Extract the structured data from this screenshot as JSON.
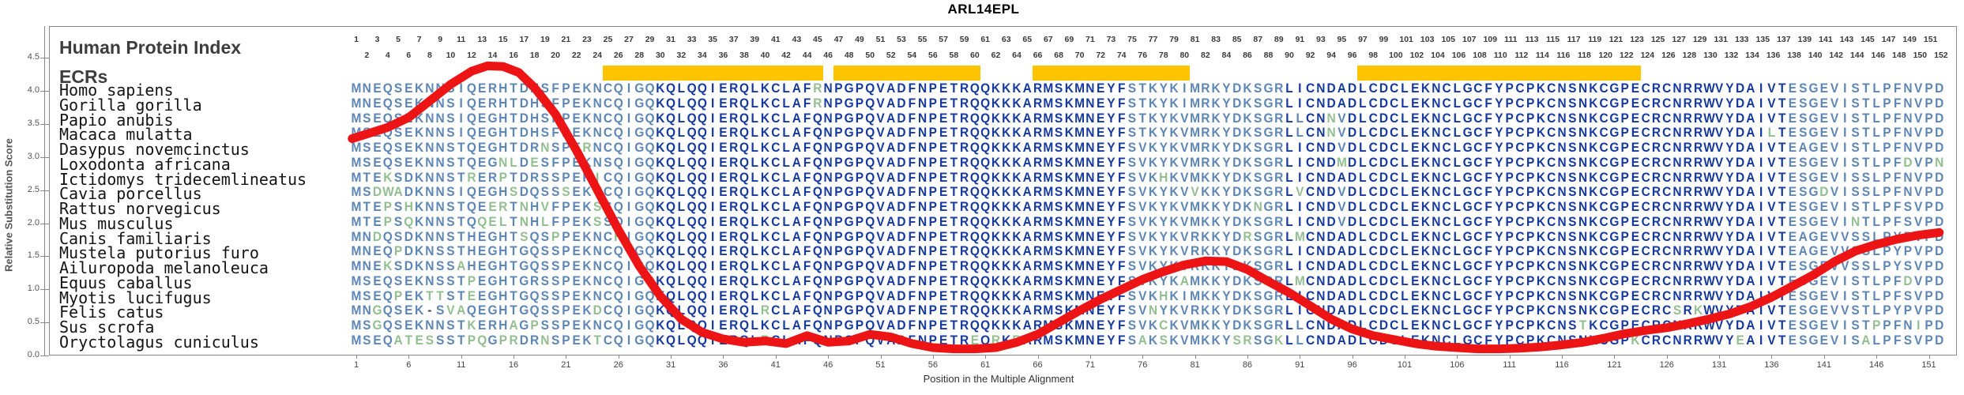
{
  "title": "ARL14EPL",
  "panel": {
    "header": "Human Protein Index",
    "subheader": "ECRs"
  },
  "y_axis": {
    "label": "Relative Substitution Score",
    "ticks": [
      "0.0",
      "0.5",
      "1.0",
      "1.5",
      "2.0",
      "2.5",
      "3.0",
      "3.5",
      "4.0",
      "4.5"
    ]
  },
  "x_axis": {
    "label": "Position in the Multiple Alignment",
    "tick_start": 1,
    "tick_step": 5,
    "tick_end": 151
  },
  "alignment": {
    "num_positions": 152,
    "species": [
      {
        "name": "Homo sapiens",
        "sequence": "MNEQSEKNNSIQERHTDHSFPEKNCQIGQKQLQQIERQLKCLAFRNPGPQVADFNPETRQQKKKARMSKMNEYFSTKYKIMRKYDKSGRLICNDADLCDCLEKNCLGCFYPCPKCNSNKCGPECRCNRRWVYDAIVTESGEVISTLPFNVPD"
      },
      {
        "name": "Gorilla gorilla",
        "sequence": "MNEQSEKNNSIQERHTDHSFPEKNCQIGQKQLQQIERQLKCLAFRNPGPQVADFNPETRQQKKKARMSKMNEYFSTKYKIMRKYDKSGRLICNDADLCDCLEKNCLGCFYPCPKCNSNKCGPECRCNRRWVYDAIVTESGEVISTLPFNVPD"
      },
      {
        "name": "Papio anubis",
        "sequence": "MSEQSEKNNSIQEGHTDHSFPEKNCQIGQKQLQQIERQLKCLAFQNPGPQVADFNPETRQQKKKARMSKMNEYFSTKYKVMRKYDKSGRLLCNNVDLCDCLEKNCLGCFYPCPKCNSNKCGPECRCNRRWVYDAIVTESGEVISTLPFNVPD"
      },
      {
        "name": "Macaca mulatta",
        "sequence": "MSEQSEKNNSIQEGHTDHSFPEKNCQIGQKQLQQIERQLKCLAFQNPGPQVADFNPETRQQKKKARMSKMNEYFSTKYKVMRKYDKSGRLLCNNVDLCDCLEKNCLGCFYPCPKCNSNKCGPECRCNRRWVYDAILTESGEVISTLPFNVPD"
      },
      {
        "name": "Dasypus novemcinctus",
        "sequence": "MSEQSEKNNSTQEGHTDRNSPERNCQIGQKQLQQIERQLKCLAFQNPGPQVADFNPETRQQKKKARMSKMNEYFSVKYKVMRKYDKSGRLICNDVDLCDCLEKNCLGCFYPCPKCNSNKCGPECRCNRRWVYDAIVTEAGEVISTLPFNVPD"
      },
      {
        "name": "Loxodonta africana",
        "sequence": "MSEQSEKNNSTQEGNLDESFPEKNSQIGQKQLQQIERQLKCLAFQNPGPQVADFNPETRQQKKKARMSKMNEYFSVKYKVMRKYDKSGRLICNDMDLCDCLEKNCLGCFYPCPKCNSNKCGPECRCNRRWVYDAIVTESGEVISTLPFDVPN"
      },
      {
        "name": "Ictidomys tridecemlineatus",
        "sequence": "MTEKSDKNNSTRERPTDRSSPEKICQIGQKQLQQIERQLKCLAFQNPGPQVADFNPETRQQKKKARMSKMNEYFSVKHKVMKKYDKSGRLICNDADLCDCLEKNCLGCFYPCPKCNSNKCGPECRCNRRWVYDAIVTESGEVISSLPFNVPD"
      },
      {
        "name": "Cavia porcellus",
        "sequence": "MSDWADKNNSIQEGHSDQSSSEKTCQIGQKQLQQIERQLKCLAFQNPGPQVADFNPETRQQKKKARMSKMNEYFSVKYKVVKKYDKSGRLVCNDVDLCDCLEKNCLGCFYPCPKCNSNKCGPECRCNRRWVYDAIVTESGDVISSLPFNVPD"
      },
      {
        "name": "Rattus norvegicus",
        "sequence": "MTEPSHKNNSTQEERTNHVFPEKSSQIGQKQLQQIERQLKCLAFQNPGPQVADFNPETRQQKKKARMSKMNEYFSVKYKVMKKYDKNGRLICNDVDLCDCLEKNCLGCFYPCPKCNSNKCGPECRCNRRWVYDAIVTESGEVISTLPFSVPD"
      },
      {
        "name": "Mus musculus",
        "sequence": "MTEPSQKNNSTQQELTNHLFPEKSSQIGQKQLQQIERQLKCLAFQNPGPQVADFNPETRQQKKKARMSKMNEYFSVKYKVMKKYDKSGRLICNDVDLCDCLEKNCLGCFYPCPKCNSNKCGPECRCNRRWVYDAIVTESGEVINTLPFSVPD"
      },
      {
        "name": "Canis familiaris",
        "sequence": "MNDQSDKNNSTHEGHTSQSPPEKNCHIGQKQLQQIERQLKCLAFQNPGPQVADFNPETRQQKKKARMSKMNEYFSVKYKVRKKYDRSGRLMCNDADLCDCLEKNCLGCFYPCPKCNSNKCGPECRCNRRWVYDAIVTEAGEVVSSLPYPVPD"
      },
      {
        "name": "Mustela putorius furo",
        "sequence": "MNEQPDKNSSTHEGHTGQSSPEKNCQIGQKQLQQIERQLKCLAFQNPGPQVADFNPETRQQKKKARMSKMNEYFSVKYKVRKKYDKSGRLICNDADLCDCLEKNCLGCFYPCPKCNSNKCGPECRCNRRWVYDAIVTEAGEVVSSLPYPVPD"
      },
      {
        "name": "Ailuropoda melanoleuca",
        "sequence": "MNEKSDKNSSAHEGHTGQSSPEKNCQIGQKQLQQIERQLKCLAFQNPGPQVADFNPETRQQKKKARMSKMNEYFSVKYKVRKKYDKSGRLICNDADLCDCLEKNCLGCFYPCPKCNSNKCGPECRCNRRWVYDAIVTESGEVVSSLPYSVPD"
      },
      {
        "name": "Equus caballus",
        "sequence": "MSEQSEKNSSTPEGHTGRSSPEKNCQIGQKQLQQIERQLKCLAFQNPGPQVADFNPETRQQKKKARMSKMNEYFSVKYKAMKKYDKSGRLMCNDADLCDCLEKNCLGCFYPCPKCNSNKCGPECRCNRRWVYDAIVTESGEVISTLPFDVPD"
      },
      {
        "name": "Myotis lucifugus",
        "sequence": "MSEQPEKTTSTEEGHTGQSSPEKNCQIGQKQLQQIERQLKCLAFQNPGPQVADFNPETRQQKKKARMSKMNEYFSVKHKIMKKYDKSGRLICNDADLCDCLEKNCLGCFYPCPKCNSNKCGPECRCNRRWVYDAIVTESGEVISTLPFSVPD"
      },
      {
        "name": "Felis catus",
        "sequence": "MNGQSEK-SVAQEGHTGQSSPEKDCQIGQKQLQQIERQLRCLAFQNPGPQVADFNPETRQQKKKARMSKMNEYFSVNYKVRKKYDKSGRLICNDADLCDCLEKNCLGCFYPCPKCNSNKCGPECRCSRKWVYDAIVTESGEVVSTLPYPVPD"
      },
      {
        "name": "Sus scrofa",
        "sequence": "MSGQSEKNNSTKERHAGPSSPEKNCQIGQKQLQQIERQLKCLAFQNPGPQVADFNPETRQQKKKARMSKMNEYFSVKCKVMKKYDKSGRLLCNDADLCDCLEKNCLGCFYPCPKCNSTKCGPECRCNRRWVYDAIVTESGEVISTPPFNIPD"
      },
      {
        "name": "Oryctolagus cuniculus",
        "sequence": "MSEQATESSSTPQGPRDRNSPEKTCQIGQKQLQQIERQLRCLAFQNPGPQVADFNPETREQRKRARMSKMNEYFSAKSKVMKKYSRSGKLLCNDADLCDCLEKNCLGCFYPCPKCNSNKCGPKCRCNRRWVYEAIVTESGEVISALPFSVPD"
      }
    ]
  },
  "ecr_bars": {
    "color": "#FFC400",
    "regions": [
      {
        "start": 25,
        "end": 45
      },
      {
        "start": 47,
        "end": 60
      },
      {
        "start": 66,
        "end": 80
      },
      {
        "start": 97,
        "end": 123
      }
    ]
  },
  "colors": {
    "curve_red": "#EC1414",
    "ecr_yellow": "#FFC400",
    "letter_conserved_navy": "#16399E",
    "letter_intermediate_steel": "#5E86B5",
    "letter_variable_green": "#92BE90",
    "gap_dash": "#444444",
    "border_gray": "#8A8A8A"
  },
  "chart_data": {
    "type": "line",
    "title": "ARL14EPL",
    "xlabel": "Position in the Multiple Alignment",
    "ylabel": "Relative Substitution Score",
    "xlim": [
      1,
      152
    ],
    "ylim": [
      0,
      4.75
    ],
    "grid": false,
    "legend": "none",
    "ecr_regions": [
      [
        25,
        45
      ],
      [
        47,
        60
      ],
      [
        66,
        80
      ],
      [
        97,
        123
      ]
    ],
    "series": [
      {
        "name": "Relative Substitution Score",
        "color": "#EC1414",
        "points": [
          [
            0.6,
            3.28
          ],
          [
            2,
            3.35
          ],
          [
            4,
            3.45
          ],
          [
            6,
            3.6
          ],
          [
            8,
            3.85
          ],
          [
            10,
            4.1
          ],
          [
            12,
            4.3
          ],
          [
            13.5,
            4.38
          ],
          [
            15,
            4.37
          ],
          [
            16.5,
            4.28
          ],
          [
            18,
            4.05
          ],
          [
            20,
            3.65
          ],
          [
            22,
            3.1
          ],
          [
            24,
            2.5
          ],
          [
            26,
            1.9
          ],
          [
            28,
            1.35
          ],
          [
            30,
            0.9
          ],
          [
            32,
            0.55
          ],
          [
            34,
            0.35
          ],
          [
            36,
            0.25
          ],
          [
            38,
            0.2
          ],
          [
            40,
            0.22
          ],
          [
            42,
            0.18
          ],
          [
            44,
            0.3
          ],
          [
            46,
            0.2
          ],
          [
            48,
            0.22
          ],
          [
            50,
            0.32
          ],
          [
            52,
            0.28
          ],
          [
            54,
            0.18
          ],
          [
            56,
            0.12
          ],
          [
            58,
            0.1
          ],
          [
            60,
            0.1
          ],
          [
            62,
            0.12
          ],
          [
            64,
            0.2
          ],
          [
            66,
            0.32
          ],
          [
            68,
            0.5
          ],
          [
            70,
            0.68
          ],
          [
            72,
            0.85
          ],
          [
            74,
            1.0
          ],
          [
            76,
            1.15
          ],
          [
            78,
            1.27
          ],
          [
            80,
            1.37
          ],
          [
            82,
            1.43
          ],
          [
            84,
            1.42
          ],
          [
            86,
            1.3
          ],
          [
            88,
            1.12
          ],
          [
            90,
            0.95
          ],
          [
            92,
            0.75
          ],
          [
            94,
            0.55
          ],
          [
            96,
            0.4
          ],
          [
            98,
            0.3
          ],
          [
            100,
            0.24
          ],
          [
            102,
            0.18
          ],
          [
            104,
            0.14
          ],
          [
            106,
            0.12
          ],
          [
            108,
            0.1
          ],
          [
            110,
            0.1
          ],
          [
            112,
            0.11
          ],
          [
            114,
            0.13
          ],
          [
            116,
            0.16
          ],
          [
            118,
            0.2
          ],
          [
            120,
            0.26
          ],
          [
            122,
            0.33
          ],
          [
            124,
            0.38
          ],
          [
            126,
            0.42
          ],
          [
            128,
            0.48
          ],
          [
            130,
            0.55
          ],
          [
            132,
            0.63
          ],
          [
            134,
            0.74
          ],
          [
            136,
            0.88
          ],
          [
            138,
            1.05
          ],
          [
            140,
            1.22
          ],
          [
            142,
            1.42
          ],
          [
            144,
            1.58
          ],
          [
            146,
            1.68
          ],
          [
            148,
            1.76
          ],
          [
            150,
            1.82
          ],
          [
            152,
            1.86
          ]
        ]
      }
    ]
  }
}
